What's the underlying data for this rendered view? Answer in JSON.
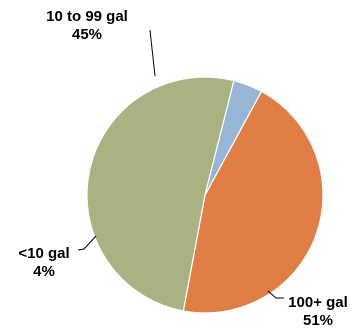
{
  "chart_data": {
    "type": "pie",
    "title": "",
    "slices": [
      {
        "label": "10 to 99 gal",
        "value": 45,
        "display": "45%",
        "color": "#E07F45"
      },
      {
        "label": "100+ gal",
        "value": 51,
        "display": "51%",
        "color": "#A8B283"
      },
      {
        "label": "<10 gal",
        "value": 4,
        "display": "4%",
        "color": "#97B6D6"
      }
    ],
    "legend": "none",
    "start_angle_deg": 28.6,
    "direction": "clockwise"
  }
}
